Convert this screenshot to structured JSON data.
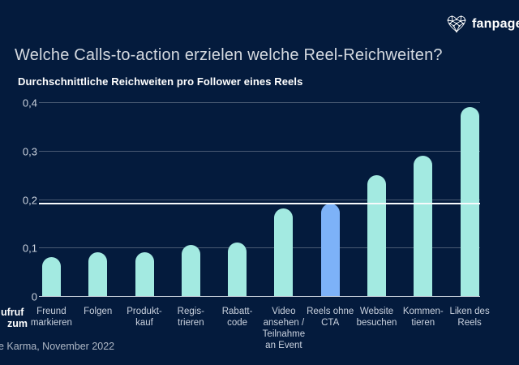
{
  "header": {
    "brand": "fanpage",
    "brand_icon": "network-heart-icon",
    "title": "Welche Calls-to-action erzielen welche Reel-Reichweiten?",
    "subtitle": "Durchschnittliche Reichweiten pro Follower eines Reels"
  },
  "footer": {
    "axis_caption_line1": "ufruf",
    "axis_caption_line2": "zum",
    "source": "e Karma, November 2022"
  },
  "colors": {
    "background": "#041b3d",
    "bar": "#a3eae1",
    "highlight_bar": "#7db2f8",
    "reference_line": "#f7fafc",
    "text": "#ffffff"
  },
  "chart_data": {
    "type": "bar",
    "title": "Welche Calls-to-action erzielen welche Reel-Reichweiten?",
    "subtitle": "Durchschnittliche Reichweiten pro Follower eines Reels",
    "categories": [
      "Freund\nmarkieren",
      "Folgen",
      "Produkt-\nkauf",
      "Regis-\ntrieren",
      "Rabatt-\ncode",
      "Video\nansehen /\nTeilnahme\nan Event",
      "Reels ohne\nCTA",
      "Website\nbesuchen",
      "Kommen-\ntieren",
      "Liken des\nReels"
    ],
    "values": [
      0.08,
      0.09,
      0.09,
      0.105,
      0.11,
      0.18,
      0.19,
      0.25,
      0.29,
      0.39
    ],
    "highlight_index": 6,
    "reference_line_value": 0.19,
    "y_ticks": [
      {
        "label": "0",
        "value": 0
      },
      {
        "label": "0,1",
        "value": 0.1
      },
      {
        "label": "0,2",
        "value": 0.2
      },
      {
        "label": "0,3",
        "value": 0.3
      },
      {
        "label": "0,4",
        "value": 0.4
      }
    ],
    "ylim": [
      0,
      0.4
    ],
    "grid": "horizontal",
    "legend": "none",
    "xlabel": "",
    "ylabel": ""
  }
}
